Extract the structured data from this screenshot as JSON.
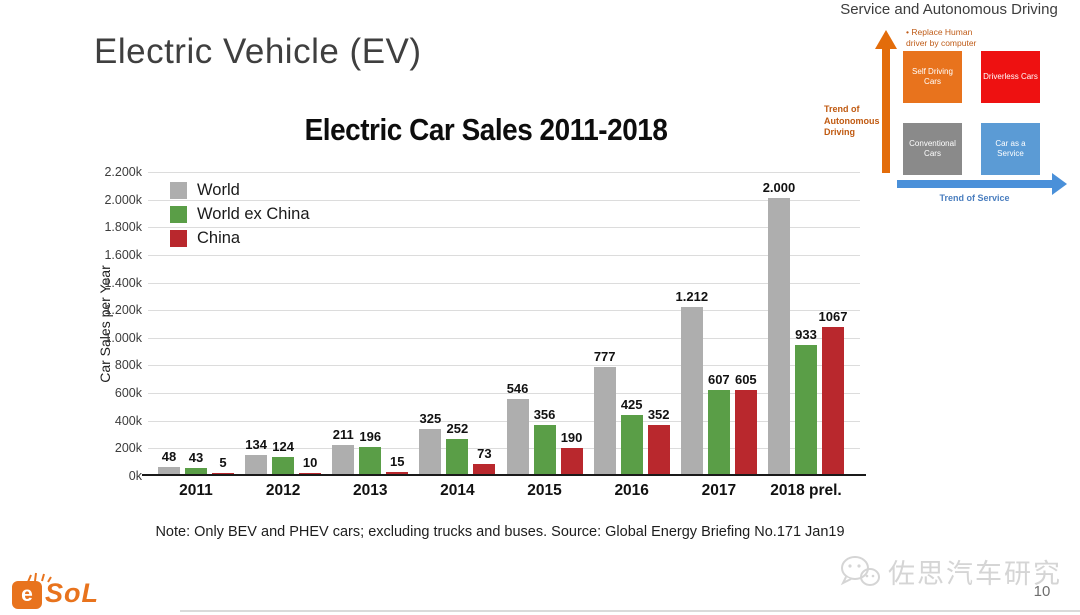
{
  "slide": {
    "title": "Electric Vehicle (EV)",
    "note": "Note: Only BEV and PHEV cars; excluding trucks and buses. Source: Global Energy Briefing No.171 Jan19",
    "page_number": "10",
    "watermark_text": "佐思汽车研究",
    "logo": {
      "e": "e",
      "rest": "SoL"
    }
  },
  "chart_data": {
    "type": "bar",
    "title": "Electric Car Sales 2011-2018",
    "xlabel": "",
    "ylabel": "Car Sales per Year",
    "categories": [
      "2011",
      "2012",
      "2013",
      "2014",
      "2015",
      "2016",
      "2017",
      "2018 prel."
    ],
    "series": [
      {
        "name": "World",
        "color": "#aeaeae",
        "values": [
          48,
          134,
          211,
          325,
          546,
          777,
          1212,
          2000
        ],
        "labels": [
          "48",
          "134",
          "211",
          "325",
          "546",
          "777",
          "1.212",
          "2.000"
        ]
      },
      {
        "name": "World ex China",
        "color": "#5a9e47",
        "values": [
          43,
          124,
          196,
          252,
          356,
          425,
          607,
          933
        ],
        "labels": [
          "43",
          "124",
          "196",
          "252",
          "356",
          "425",
          "607",
          "933"
        ]
      },
      {
        "name": "China",
        "color": "#b9282d",
        "values": [
          5,
          10,
          15,
          73,
          190,
          352,
          605,
          1067
        ],
        "labels": [
          "5",
          "10",
          "15",
          "73",
          "190",
          "352",
          "605",
          "1067"
        ]
      }
    ],
    "ylim": [
      0,
      2200
    ],
    "ytick_step": 200,
    "ytick_labels": [
      "0k",
      "200k",
      "400k",
      "600k",
      "800k",
      "1.000k",
      "1.200k",
      "1.400k",
      "1.600k",
      "1.800k",
      "2.000k",
      "2.200k"
    ],
    "grid": true,
    "legend_position": "top-left"
  },
  "diagram": {
    "title": "Service and Autonomous Driving",
    "bullet_marker": "•",
    "bullet_text": "Replace Human driver by computer",
    "vertical_axis_label": "Trend of Autonomous Driving",
    "horizontal_axis_label": "Trend of Service",
    "quadrants": [
      {
        "label": "Self Driving Cars",
        "color": "#e8731d",
        "position": "top-left"
      },
      {
        "label": "Driverless Cars",
        "color": "#ee1111",
        "position": "top-right"
      },
      {
        "label": "Conventional Cars",
        "color": "#8a8a8a",
        "position": "bottom-left"
      },
      {
        "label": "Car as a Service",
        "color": "#5b9bd5",
        "position": "bottom-right"
      }
    ],
    "colors": {
      "vertical_arrow": "#e36c0a",
      "horizontal_arrow": "#4a90d9"
    }
  }
}
